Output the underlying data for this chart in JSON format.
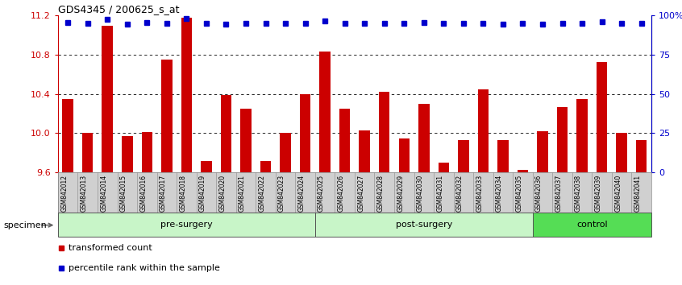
{
  "title": "GDS4345 / 200625_s_at",
  "categories": [
    "GSM842012",
    "GSM842013",
    "GSM842014",
    "GSM842015",
    "GSM842016",
    "GSM842017",
    "GSM842018",
    "GSM842019",
    "GSM842020",
    "GSM842021",
    "GSM842022",
    "GSM842023",
    "GSM842024",
    "GSM842025",
    "GSM842026",
    "GSM842027",
    "GSM842028",
    "GSM842029",
    "GSM842030",
    "GSM842031",
    "GSM842032",
    "GSM842033",
    "GSM842034",
    "GSM842035",
    "GSM842036",
    "GSM842037",
    "GSM842038",
    "GSM842039",
    "GSM842040",
    "GSM842041"
  ],
  "bar_values": [
    10.35,
    10.0,
    11.1,
    9.97,
    10.01,
    10.75,
    11.18,
    9.72,
    10.39,
    10.25,
    9.72,
    10.0,
    10.4,
    10.83,
    10.25,
    10.03,
    10.42,
    9.95,
    10.3,
    9.7,
    9.93,
    10.45,
    9.93,
    9.63,
    10.02,
    10.27,
    10.35,
    10.73,
    10.0,
    9.93
  ],
  "pct_y": [
    11.13,
    11.12,
    11.16,
    11.11,
    11.13,
    11.12,
    11.17,
    11.12,
    11.11,
    11.12,
    11.12,
    11.12,
    11.12,
    11.15,
    11.12,
    11.12,
    11.12,
    11.12,
    11.13,
    11.12,
    11.12,
    11.12,
    11.11,
    11.12,
    11.11,
    11.12,
    11.12,
    11.14,
    11.12,
    11.12
  ],
  "bar_color": "#cc0000",
  "pct_color": "#0000cc",
  "ylim": [
    9.6,
    11.2
  ],
  "yticks_left": [
    9.6,
    10.0,
    10.4,
    10.8,
    11.2
  ],
  "yticks_right": [
    0,
    25,
    50,
    75,
    100
  ],
  "ytick_labels_right": [
    "0",
    "25",
    "50",
    "75",
    "100%"
  ],
  "grid_values": [
    10.0,
    10.4,
    10.8
  ],
  "group_configs": [
    {
      "label": "pre-surgery",
      "start": 0,
      "end": 12,
      "color": "#c8f5c8"
    },
    {
      "label": "post-surgery",
      "start": 13,
      "end": 23,
      "color": "#c8f5c8"
    },
    {
      "label": "control",
      "start": 24,
      "end": 29,
      "color": "#55dd55"
    }
  ],
  "specimen_label": "specimen",
  "legend": [
    {
      "label": "transformed count",
      "color": "#cc0000"
    },
    {
      "label": "percentile rank within the sample",
      "color": "#0000cc"
    }
  ],
  "xtick_bg": "#d0d0d0",
  "fig_bg": "#ffffff"
}
